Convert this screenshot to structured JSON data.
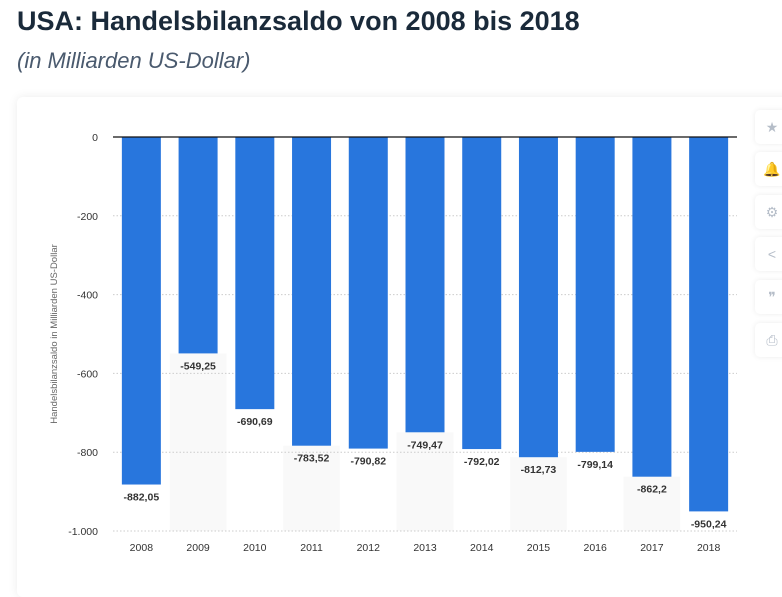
{
  "title": "USA: Handelsbilanzsaldo von 2008 bis 2018",
  "subtitle": "(in Milliarden US-Dollar)",
  "side_buttons": [
    {
      "icon": "star-icon",
      "glyph": "★"
    },
    {
      "icon": "bell-icon",
      "glyph": "🔔"
    },
    {
      "icon": "gear-icon",
      "glyph": "⚙"
    },
    {
      "icon": "share-icon",
      "glyph": "<"
    },
    {
      "icon": "quote-icon",
      "glyph": "❞"
    },
    {
      "icon": "print-icon",
      "glyph": "⎙"
    }
  ],
  "chart_data": {
    "type": "bar",
    "categories": [
      "2008",
      "2009",
      "2010",
      "2011",
      "2012",
      "2013",
      "2014",
      "2015",
      "2016",
      "2017",
      "2018"
    ],
    "values": [
      -882.05,
      -549.25,
      -690.69,
      -783.52,
      -790.82,
      -749.47,
      -792.02,
      -812.73,
      -799.14,
      -862.2,
      -950.24
    ],
    "data_labels": [
      "-882,05",
      "-549,25",
      "-690,69",
      "-783,52",
      "-790,82",
      "-749,47",
      "-792,02",
      "-812,73",
      "-799,14",
      "-862,2",
      "-950,24"
    ],
    "ylabel": "Handelsbilanzsaldo in Milliarden US-Dollar",
    "ylim": [
      -1000,
      0
    ],
    "yticks": [
      0,
      -200,
      -400,
      -600,
      -800,
      -1000
    ],
    "ytick_labels": [
      "0",
      "-200",
      "-400",
      "-600",
      "-800",
      "-1.000"
    ],
    "grid": true,
    "bar_color": "#2876dd"
  }
}
